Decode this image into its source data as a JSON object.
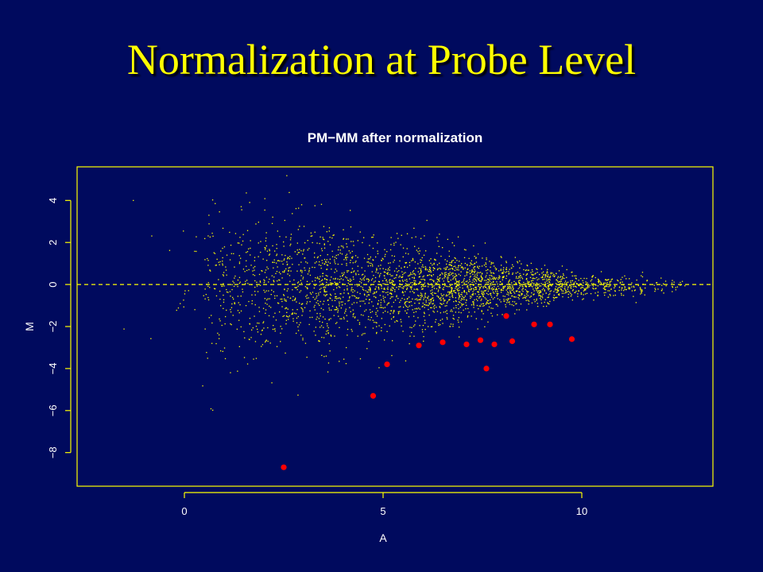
{
  "slide": {
    "title": "Normalization at Probe Level"
  },
  "colors": {
    "background": "#000a5e",
    "title": "#ffff00",
    "axis": "#ffff00",
    "points": "#ffff00",
    "highlight": "#ff0000",
    "text": "#ffffff"
  },
  "chart_data": {
    "type": "scatter",
    "title": "PM−MM after normalization",
    "xlabel": "A",
    "ylabel": "M",
    "xlim": [
      -2.7,
      13.3
    ],
    "ylim": [
      -9.6,
      5.6
    ],
    "xticks": [
      0,
      5,
      10
    ],
    "xtick_labels": [
      "0",
      "5",
      "10"
    ],
    "yticks": [
      4,
      2,
      0,
      -2,
      -4,
      -6,
      -8
    ],
    "ytick_labels": [
      "4",
      "2",
      "0",
      "−2",
      "−4",
      "−6",
      "−8"
    ],
    "reference_line": {
      "y": 0,
      "style": "dashed"
    },
    "grid": false,
    "background_cloud": {
      "description_hidden": true,
      "approx_points": 3000,
      "x_range": [
        -2.2,
        12.6
      ],
      "note_center_y": 0
    },
    "series": [
      {
        "color": "#ff0000",
        "x": [
          2.5,
          4.75,
          5.1,
          5.9,
          6.5,
          7.1,
          7.45,
          7.6,
          7.8,
          8.1,
          8.25,
          8.8,
          9.2,
          9.75
        ],
        "y": [
          -8.7,
          -5.3,
          -3.8,
          -2.9,
          -2.75,
          -2.85,
          -2.65,
          -4.0,
          -2.85,
          -1.5,
          -2.7,
          -1.9,
          -1.9,
          -2.6
        ]
      }
    ]
  }
}
